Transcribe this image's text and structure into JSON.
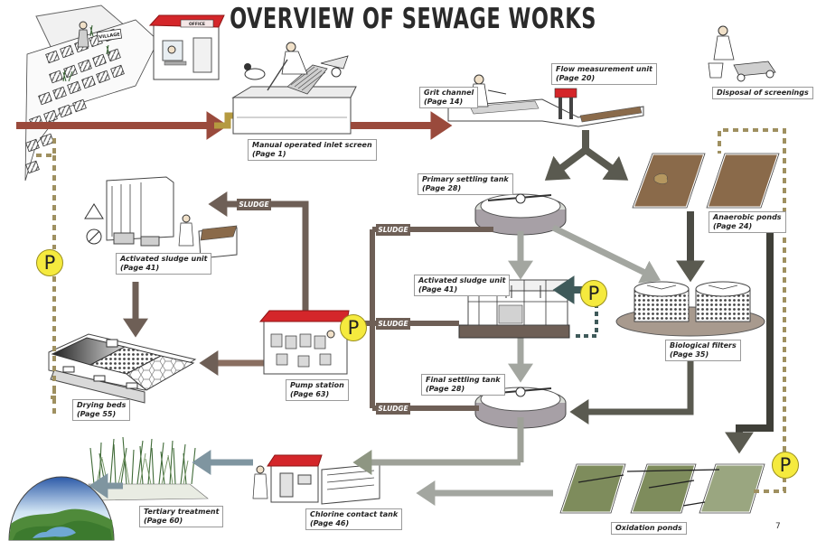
{
  "title": "OVERVIEW OF SEWAGE WORKS",
  "signs": {
    "village": "VILLAGE",
    "office": "OFFICE"
  },
  "sludge_label": "SLUDGE",
  "pump_label": "P",
  "page_number": "7",
  "units": {
    "inlet_screen": {
      "name": "Manual operated inlet screen",
      "page": "(Page 1)"
    },
    "grit_channel": {
      "name": "Grit channel",
      "page": "(Page 14)"
    },
    "flow_measurement": {
      "name": "Flow measurement unit",
      "page": "(Page 20)"
    },
    "screenings": {
      "name": "Disposal of screenings"
    },
    "primary_settling": {
      "name": "Primary settling tank",
      "page": "(Page 28)"
    },
    "anaerobic_ponds": {
      "name": "Anaerobic ponds",
      "page": "(Page 24)"
    },
    "activated_sludge_top": {
      "name": "Activated sludge unit",
      "page": "(Page 41)"
    },
    "activated_sludge_mid": {
      "name": "Activated sludge unit",
      "page": "(Page 41)"
    },
    "biological_filters": {
      "name": "Biological filters",
      "page": "(Page 35)"
    },
    "pump_station": {
      "name": "Pump station",
      "page": "(Page 63)"
    },
    "final_settling": {
      "name": "Final settling tank",
      "page": "(Page 28)"
    },
    "drying_beds": {
      "name": "Drying beds",
      "page": "(Page 55)"
    },
    "tertiary": {
      "name": "Tertiary treatment",
      "page": "(Page 60)"
    },
    "chlorine": {
      "name": "Chlorine contact tank",
      "page": "(Page 46)"
    },
    "oxidation_ponds": {
      "name": "Oxidation ponds"
    }
  },
  "colors": {
    "sewage": "#9a4a3c",
    "sludge": "#6e5f56",
    "treated": "#8e9682",
    "clean": "#7f95a0",
    "pond_sludge": "#8a6a4a",
    "pond_oxidation": "#7e8c5c",
    "pump_line": "#9f9060",
    "pump_fill": "#f5ea3e",
    "roof": "#d4262a"
  }
}
